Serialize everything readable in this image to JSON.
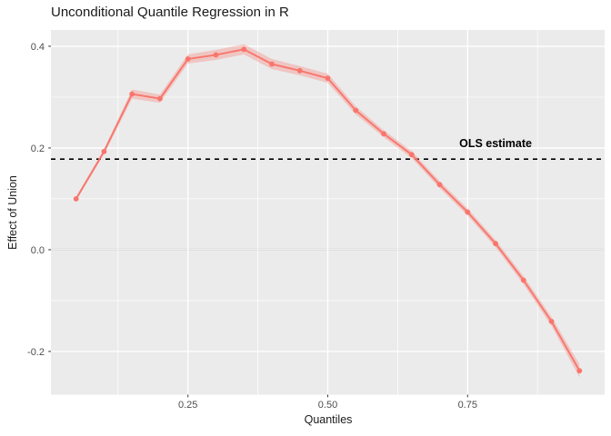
{
  "chart_data": {
    "type": "line",
    "title": "Unconditional Quantile Regression in R",
    "xlabel": "Quantiles",
    "ylabel": "Effect of Union",
    "x": [
      0.05,
      0.1,
      0.15,
      0.2,
      0.25,
      0.3,
      0.35,
      0.4,
      0.45,
      0.5,
      0.55,
      0.6,
      0.65,
      0.7,
      0.75,
      0.8,
      0.85,
      0.9,
      0.95
    ],
    "y": [
      0.1,
      0.193,
      0.306,
      0.297,
      0.375,
      0.383,
      0.394,
      0.365,
      0.352,
      0.337,
      0.274,
      0.228,
      0.187,
      0.128,
      0.074,
      0.012,
      -0.06,
      -0.141,
      -0.238
    ],
    "ribbon_halfwidth": [
      0.004,
      0.005,
      0.009,
      0.008,
      0.009,
      0.01,
      0.01,
      0.01,
      0.009,
      0.009,
      0.008,
      0.007,
      0.007,
      0.007,
      0.007,
      0.007,
      0.008,
      0.009,
      0.013
    ],
    "ols_estimate": 0.178,
    "annotation": {
      "text": "OLS estimate",
      "x": 0.8,
      "y": 0.21
    },
    "zero_line": 0,
    "xlim": [
      0.005,
      0.995
    ],
    "ylim": [
      -0.285,
      0.432
    ],
    "xticks": {
      "values": [
        0.25,
        0.5,
        0.75
      ],
      "labels": [
        "0.25",
        "0.50",
        "0.75"
      ]
    },
    "yticks": {
      "values": [
        -0.2,
        0.0,
        0.2,
        0.4
      ],
      "labels": [
        "-0.2",
        "0.0",
        "0.2",
        "0.4"
      ]
    },
    "xminor": [
      0.125,
      0.375,
      0.625,
      0.875
    ],
    "yminor": [
      -0.1,
      0.1,
      0.3
    ],
    "grid": true,
    "legend": "none",
    "colors": {
      "line": "#f8766d",
      "point": "#f8766d",
      "ribbon": "#f8766d",
      "ribbon_opacity": 0.32,
      "panel_bg": "#ebebeb",
      "grid": "#ffffff",
      "ols_line": "#000000",
      "zero_line": "#b3b3b3",
      "tick_mark": "#333333",
      "tick_text": "#4d4d4d",
      "title_text": "#1a1a1a"
    }
  }
}
